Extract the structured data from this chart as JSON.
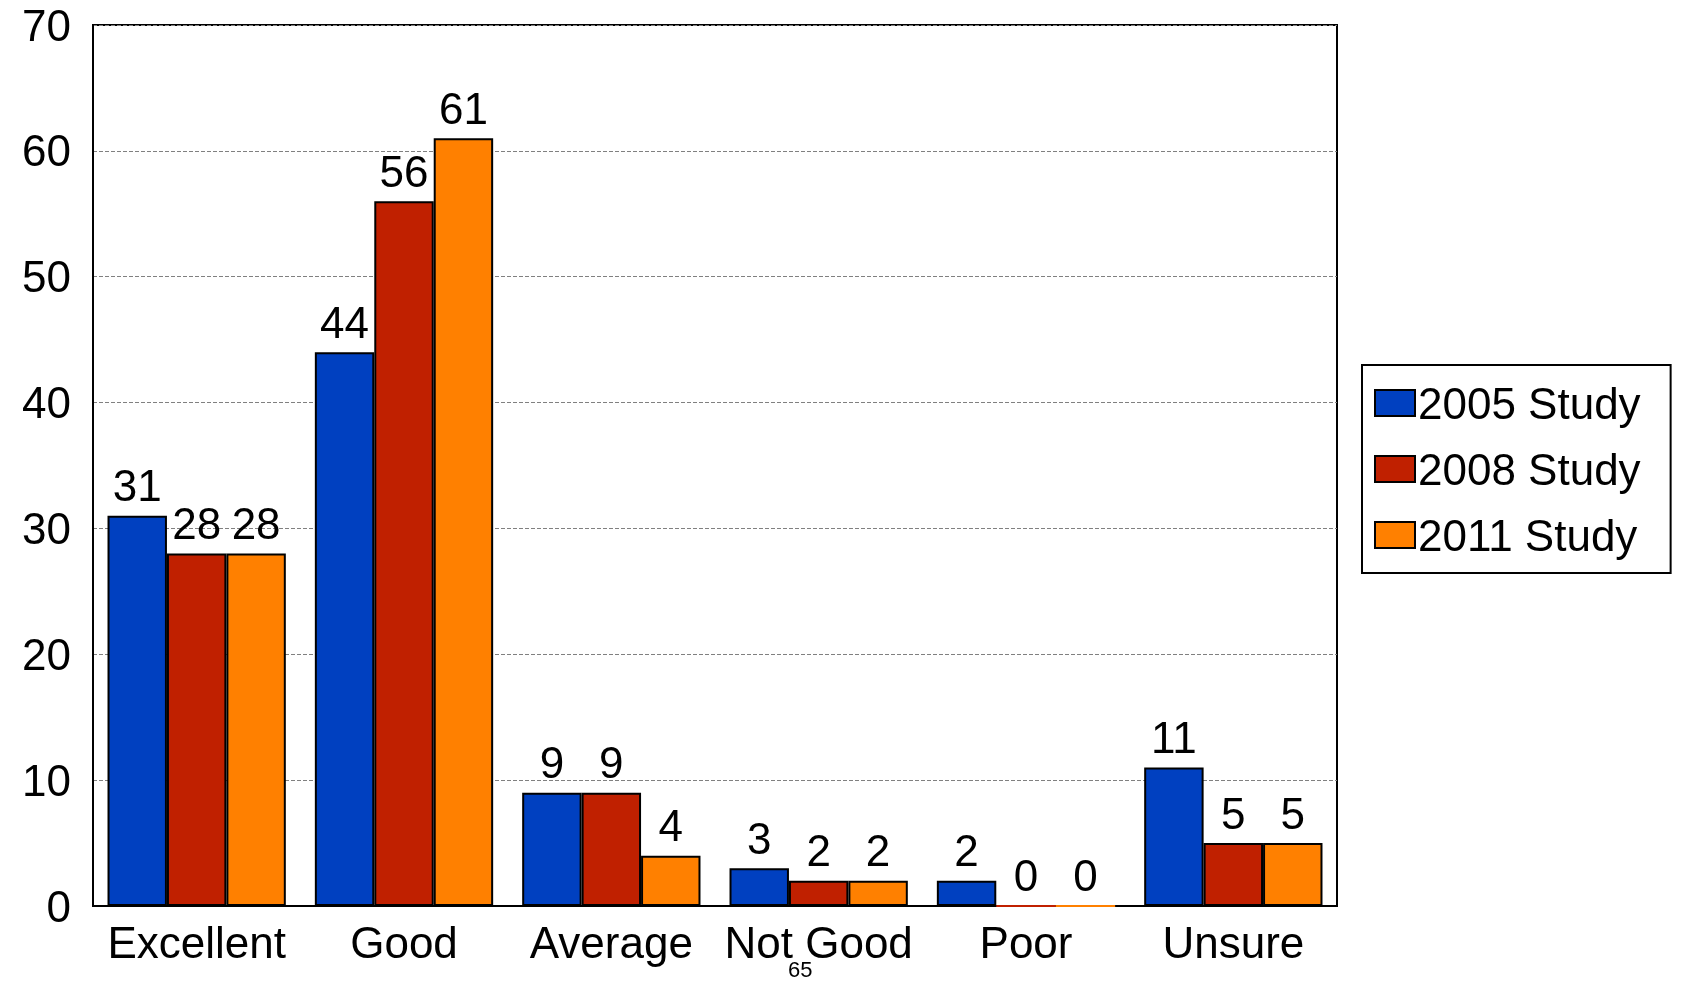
{
  "chart_data": {
    "type": "bar",
    "categories": [
      "Excellent",
      "Good",
      "Average",
      "Not Good",
      "Poor",
      "Unsure"
    ],
    "series": [
      {
        "name": "2005 Study",
        "color": "#0040c0",
        "values": [
          31,
          44,
          9,
          3,
          2,
          11
        ]
      },
      {
        "name": "2008 Study",
        "color": "#c02000",
        "values": [
          28,
          56,
          9,
          2,
          0,
          5
        ]
      },
      {
        "name": "2011 Study",
        "color": "#ff8000",
        "values": [
          28,
          61,
          4,
          2,
          0,
          5
        ]
      }
    ],
    "ylim": [
      0,
      70
    ],
    "yticks": [
      0,
      10,
      20,
      30,
      40,
      50,
      60,
      70
    ],
    "grid": "y",
    "legend": "right",
    "data_labels": true,
    "annotations": [
      "65"
    ]
  }
}
